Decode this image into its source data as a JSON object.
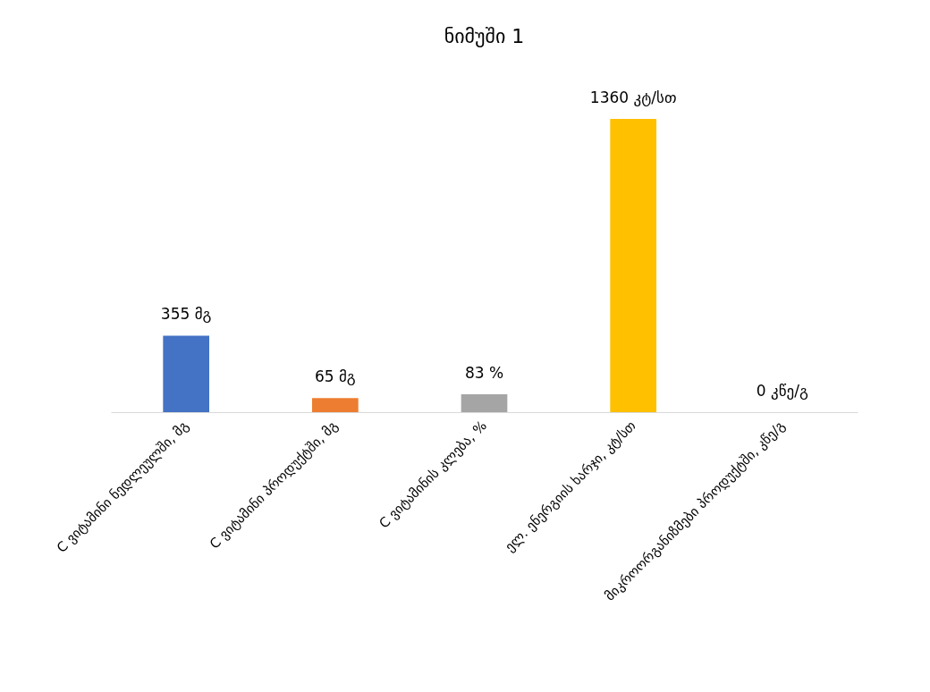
{
  "chart_data": {
    "type": "bar",
    "title": "ნიმუში 1",
    "categories": [
      "C ვიტამინი ნედლეულში, მგ",
      "C ვიტამინი პროდუქტში, მგ",
      "C ვიტამინის კლება, %",
      "ელ. ენერგიის ხარჯი, კტ/სთ",
      "მიკროორგანიზმები პროდუქტში, კწე/გ"
    ],
    "values": [
      355,
      65,
      83,
      1360,
      0
    ],
    "colors": [
      "#4472c4",
      "#ed7d31",
      "#a5a5a5",
      "#ffc000",
      "#5b9bd5"
    ],
    "value_labels": [
      "355 მგ",
      "65 მგ",
      "83 %",
      "1360 კტ/სთ",
      "0 კწე/გ"
    ]
  }
}
